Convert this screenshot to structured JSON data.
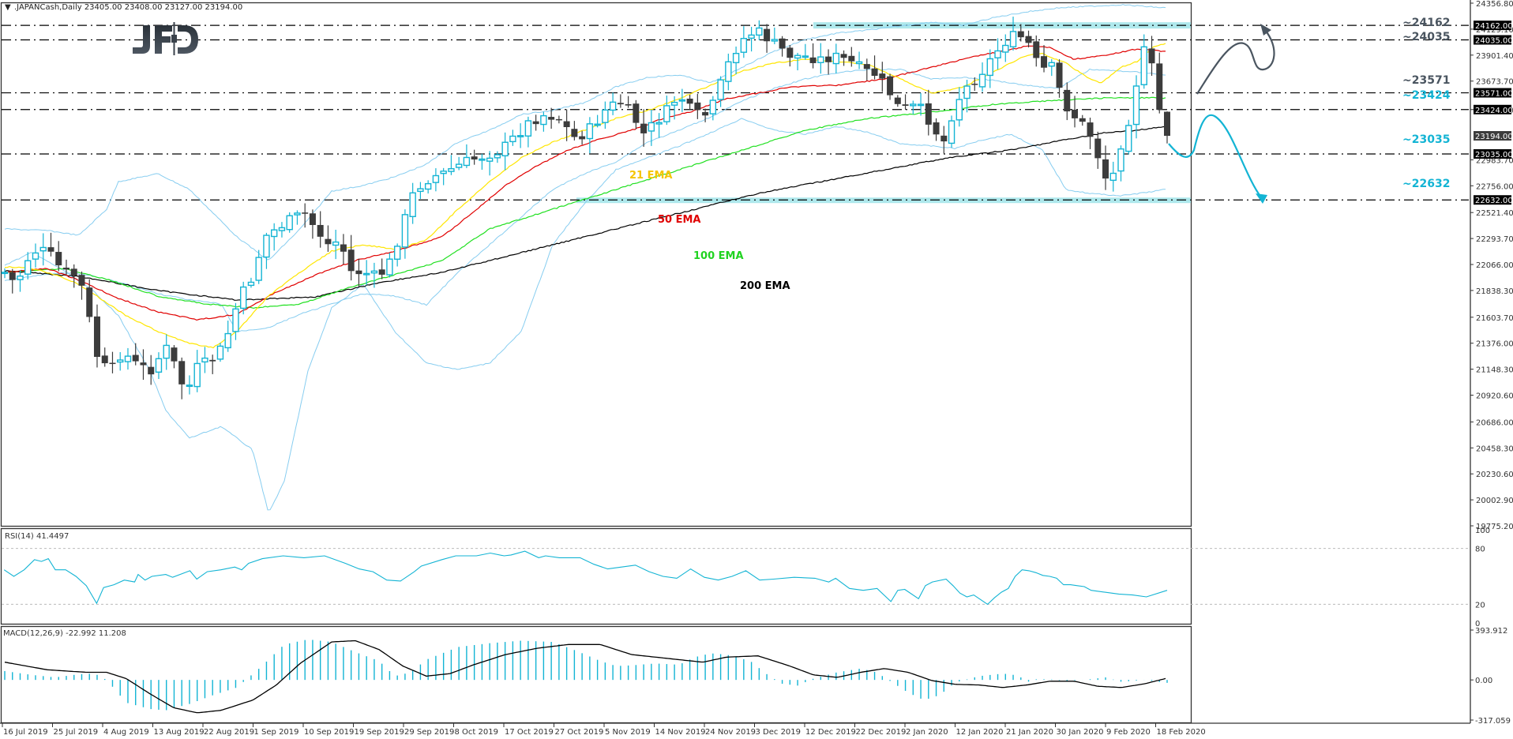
{
  "header": {
    "symbol_line": ".JAPANCash,Daily  23405.00 23408.00 23127.00 23194.00",
    "symbol": ".JAPANCash",
    "timeframe": "Daily",
    "ohlc": {
      "open": "23405.00",
      "high": "23408.00",
      "low": "23127.00",
      "close": "23194.00"
    }
  },
  "logo": {
    "text": "JFD"
  },
  "colors": {
    "bull_candle": "#13b4d4",
    "bear_candle": "#3c3c3c",
    "ema21": "#ffe600",
    "ema50": "#e00000",
    "ema100": "#21e021",
    "ema200": "#000000",
    "bollinger": "#87cdf0",
    "zone": "#aee8ec",
    "resistance_label": "#4a5560",
    "support_label": "#13b4d4",
    "rsi_line": "#13b4d4",
    "macd_hist": "#13b4d4",
    "macd_signal": "#000000",
    "axis": "#333333"
  },
  "chart_data": [
    {
      "type": "candlestick",
      "title": ".JAPANCash,Daily",
      "ylim": [
        19775.2,
        24356.8
      ],
      "y_ticks": [
        "24356.80",
        "24129.10",
        "23901.40",
        "23673.70",
        "23424.00",
        "22983.70",
        "22756.00",
        "22521.40",
        "22293.70",
        "22066.00",
        "21838.30",
        "21603.70",
        "21376.00",
        "21148.30",
        "20920.60",
        "20686.00",
        "20458.30",
        "20230.60",
        "20002.90",
        "19775.20"
      ],
      "x_ticks": [
        "16 Jul 2019",
        "25 Jul 2019",
        "4 Aug 2019",
        "13 Aug 2019",
        "22 Aug 2019",
        "1 Sep 2019",
        "10 Sep 2019",
        "19 Sep 2019",
        "29 Sep 2019",
        "8 Oct 2019",
        "17 Oct 2019",
        "27 Oct 2019",
        "5 Nov 2019",
        "14 Nov 2019",
        "24 Nov 2019",
        "3 Dec 2019",
        "12 Dec 2019",
        "22 Dec 2019",
        "2 Jan 2020",
        "12 Jan 2020",
        "21 Jan 2020",
        "30 Jan 2020",
        "9 Feb 2020",
        "18 Feb 2020"
      ],
      "price_tags": [
        {
          "value": "24162.00",
          "y": 24162
        },
        {
          "value": "24035.00",
          "y": 24035
        },
        {
          "value": "23571.00",
          "y": 23571
        },
        {
          "value": "23424.00",
          "y": 23424
        },
        {
          "value": "23194.00",
          "y": 23194,
          "current": true
        },
        {
          "value": "23035.00",
          "y": 23035
        },
        {
          "value": "22632.00",
          "y": 22632
        }
      ],
      "levels": [
        {
          "label": "~24162",
          "value": 24162,
          "kind": "resistance",
          "zone": true
        },
        {
          "label": "~24035",
          "value": 24035,
          "kind": "resistance"
        },
        {
          "label": "~23571",
          "value": 23571,
          "kind": "resistance"
        },
        {
          "label": "~23424",
          "value": 23424,
          "kind": "support"
        },
        {
          "label": "~23035",
          "value": 23035,
          "kind": "support"
        },
        {
          "label": "~22632",
          "value": 22632,
          "kind": "support",
          "zone": true
        }
      ],
      "annotations": [
        "21 EMA",
        "50 EMA",
        "100 EMA",
        "200 EMA"
      ],
      "series_names": [
        "Candles",
        "21 EMA",
        "50 EMA",
        "100 EMA",
        "200 EMA",
        "Bollinger Bands"
      ],
      "last_close": 23194
    },
    {
      "type": "line",
      "title": "RSI(14) 41.4497",
      "name": "RSI(14)",
      "value": 41.4497,
      "ylim": [
        0,
        100
      ],
      "y_ticks": [
        "100",
        "80",
        "20",
        "0"
      ],
      "levels": [
        80,
        20
      ]
    },
    {
      "type": "bar+line",
      "title": "MACD(12,26,9) -22.992 11.208",
      "name": "MACD(12,26,9)",
      "main": -22.992,
      "signal": 11.208,
      "ylim": [
        -317.059,
        393.912
      ],
      "y_ticks": [
        "393.912",
        "0.00",
        "-317.059"
      ]
    }
  ],
  "rsi": {
    "label": "RSI(14) 41.4497",
    "ticks": [
      "100",
      "80",
      "20",
      "0"
    ]
  },
  "macd": {
    "label": "MACD(12,26,9) -22.992 11.208",
    "ticks": [
      "393.912",
      "0.00",
      "-317.059"
    ]
  },
  "ema_labels": {
    "e21": "21 EMA",
    "e50": "50 EMA",
    "e100": "100 EMA",
    "e200": "200 EMA"
  }
}
